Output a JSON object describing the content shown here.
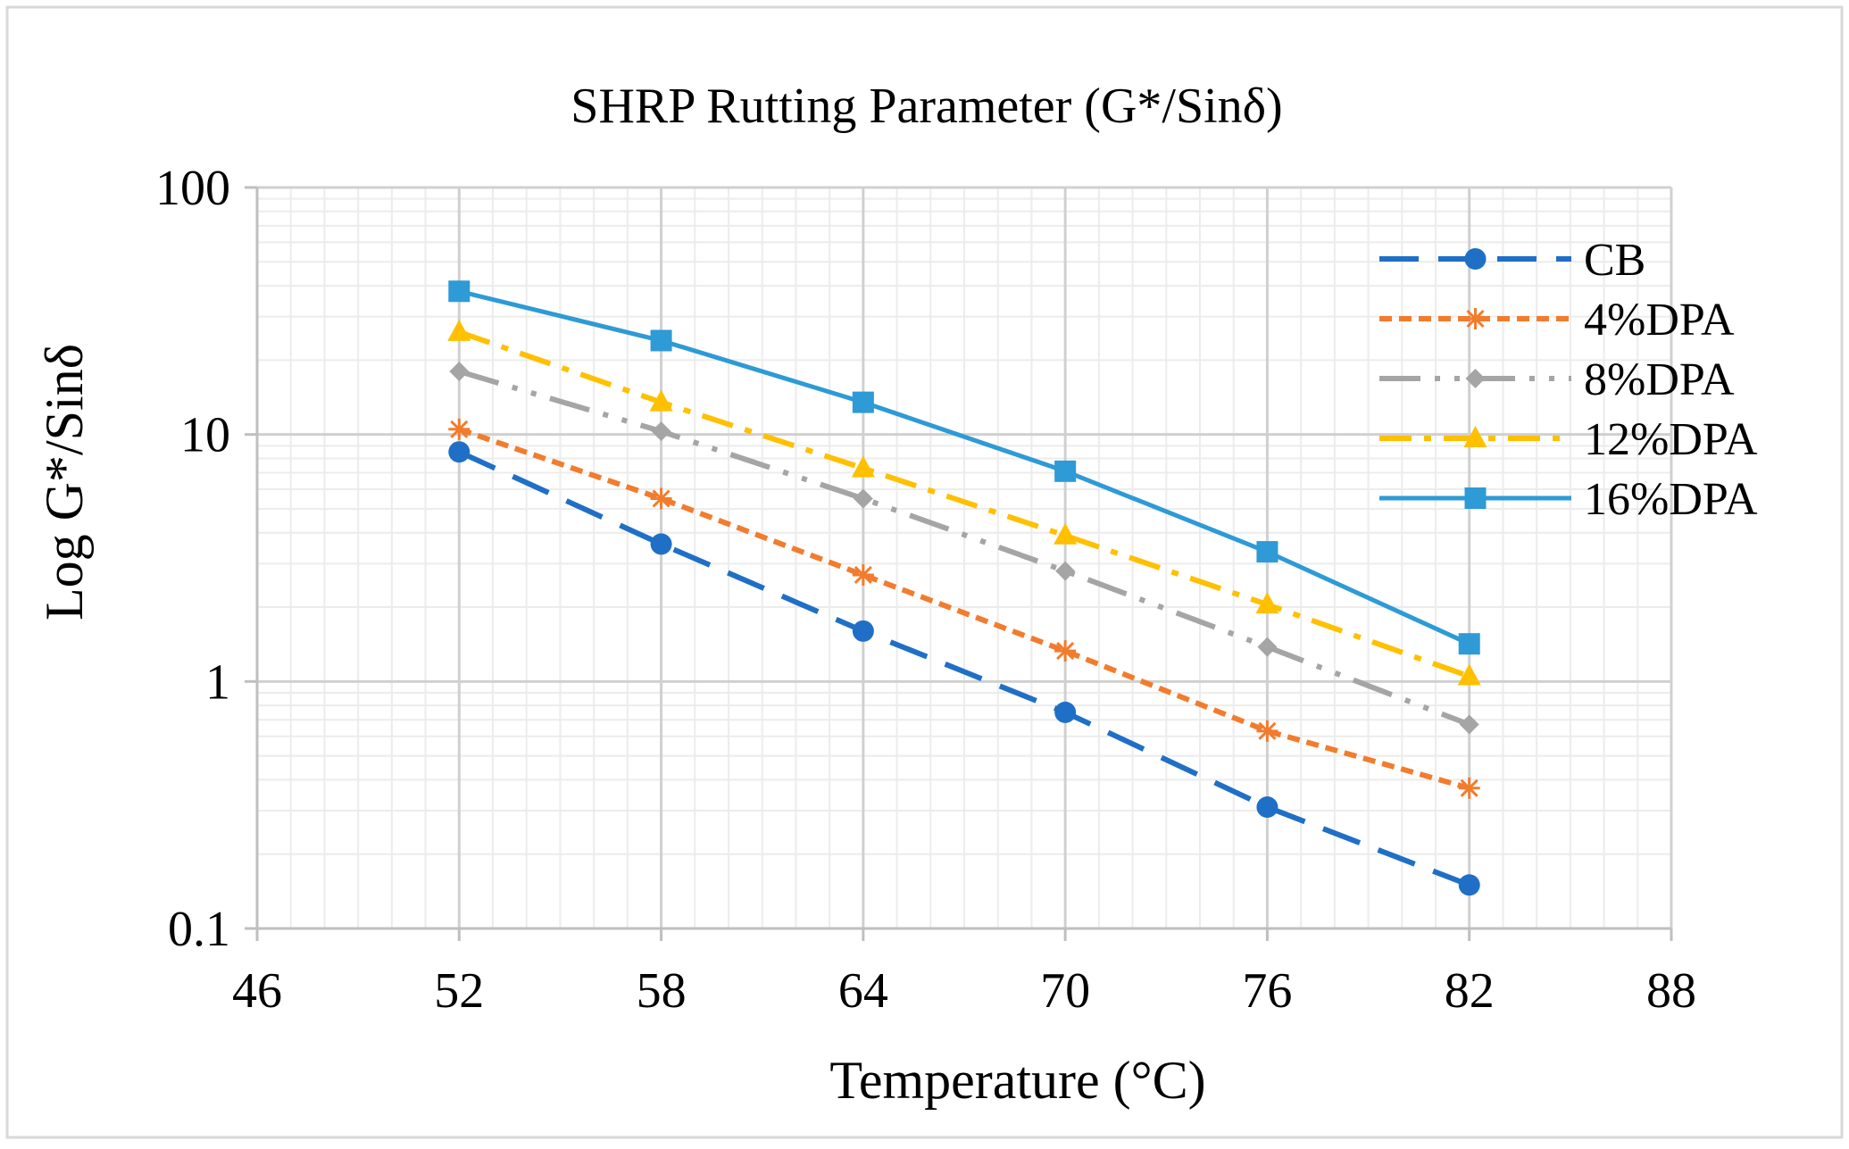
{
  "chart_data": {
    "type": "line",
    "title": "SHRP Rutting Parameter (G*/Sinδ)",
    "xlabel": "Temperature (°C)",
    "ylabel": "Log G*/Sinδ",
    "x_scale": "linear",
    "y_scale": "log",
    "xlim": [
      46,
      88
    ],
    "ylim": [
      0.1,
      100
    ],
    "x_ticks": [
      46,
      52,
      58,
      64,
      70,
      76,
      82,
      88
    ],
    "x_tick_labels": [
      "46",
      "52",
      "58",
      "64",
      "70",
      "76",
      "82",
      "88"
    ],
    "y_ticks": [
      0.1,
      1,
      10,
      100
    ],
    "y_tick_labels": [
      "0.1",
      "1",
      "10",
      "100"
    ],
    "x_minor_step": 1,
    "grid": true,
    "legend_position": "top-right",
    "series": [
      {
        "name": "CB",
        "x": [
          52,
          58,
          64,
          70,
          76,
          82
        ],
        "values": [
          8.5,
          3.6,
          1.6,
          0.75,
          0.31,
          0.15
        ],
        "color": "#1f6fc6",
        "marker": "circle",
        "dash": "dashed"
      },
      {
        "name": "4%DPA",
        "x": [
          52,
          58,
          64,
          70,
          76,
          82
        ],
        "values": [
          10.5,
          5.5,
          2.7,
          1.33,
          0.63,
          0.37
        ],
        "color": "#f27c2e",
        "marker": "star",
        "dash": "dotted"
      },
      {
        "name": "8%DPA",
        "x": [
          52,
          58,
          64,
          70,
          76,
          82
        ],
        "values": [
          18,
          10.3,
          5.5,
          2.8,
          1.38,
          0.67
        ],
        "color": "#a5a5a5",
        "marker": "diamond",
        "dash": "longdashdotdot"
      },
      {
        "name": "12%DPA",
        "x": [
          52,
          58,
          64,
          70,
          76,
          82
        ],
        "values": [
          26,
          13.5,
          7.3,
          3.9,
          2.05,
          1.05
        ],
        "color": "#ffc000",
        "marker": "triangle",
        "dash": "dashdot"
      },
      {
        "name": "16%DPA",
        "x": [
          52,
          58,
          64,
          70,
          76,
          82
        ],
        "values": [
          38,
          24,
          13.5,
          7.1,
          3.35,
          1.42
        ],
        "color": "#2e9ad6",
        "marker": "square",
        "dash": "solid"
      }
    ]
  }
}
